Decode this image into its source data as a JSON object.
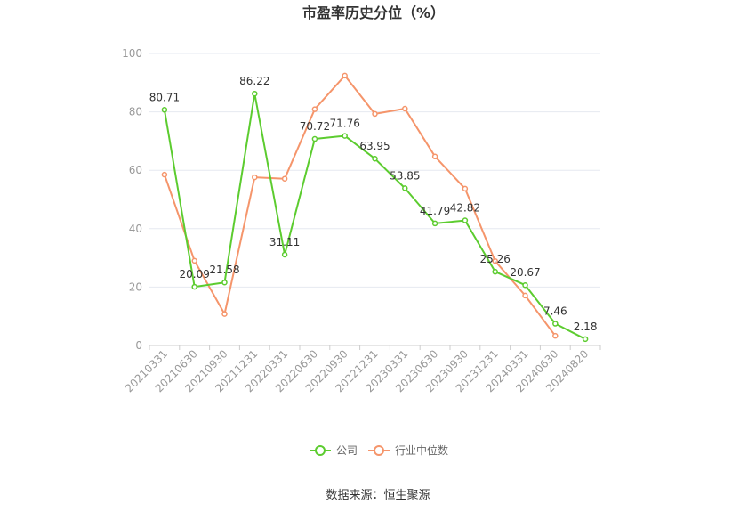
{
  "chart_data": {
    "type": "line",
    "title": "市盈率历史分位（%）",
    "source": "数据来源：恒生聚源",
    "xlabel": "",
    "ylabel": "",
    "ylim": [
      0,
      100
    ],
    "yticks": [
      0,
      20,
      40,
      60,
      80,
      100
    ],
    "grid": true,
    "legend_position": "bottom",
    "categories": [
      "20210331",
      "20210630",
      "20210930",
      "20211231",
      "20220331",
      "20220630",
      "20220930",
      "20221231",
      "20230331",
      "20230630",
      "20230930",
      "20231231",
      "20240331",
      "20240630",
      "20240820"
    ],
    "series": [
      {
        "name": "公司",
        "color": "#5ccc2f",
        "values": [
          80.71,
          20.09,
          21.58,
          86.22,
          31.11,
          70.72,
          71.76,
          63.95,
          53.85,
          41.79,
          42.82,
          25.26,
          20.67,
          7.46,
          2.18
        ],
        "labels": [
          "80.71",
          "20.09",
          "21.58",
          "86.22",
          "31.11",
          "70.72",
          "71.76",
          "63.95",
          "53.85",
          "41.79",
          "42.82",
          "25.26",
          "20.67",
          "7.46",
          "2.18"
        ]
      },
      {
        "name": "行业中位数",
        "color": "#f5956b",
        "values": [
          58.5,
          29,
          10.8,
          57.6,
          57.1,
          80.9,
          92.4,
          79.3,
          81.1,
          64.7,
          53.7,
          28.9,
          17.1,
          3.3,
          null
        ]
      }
    ]
  }
}
